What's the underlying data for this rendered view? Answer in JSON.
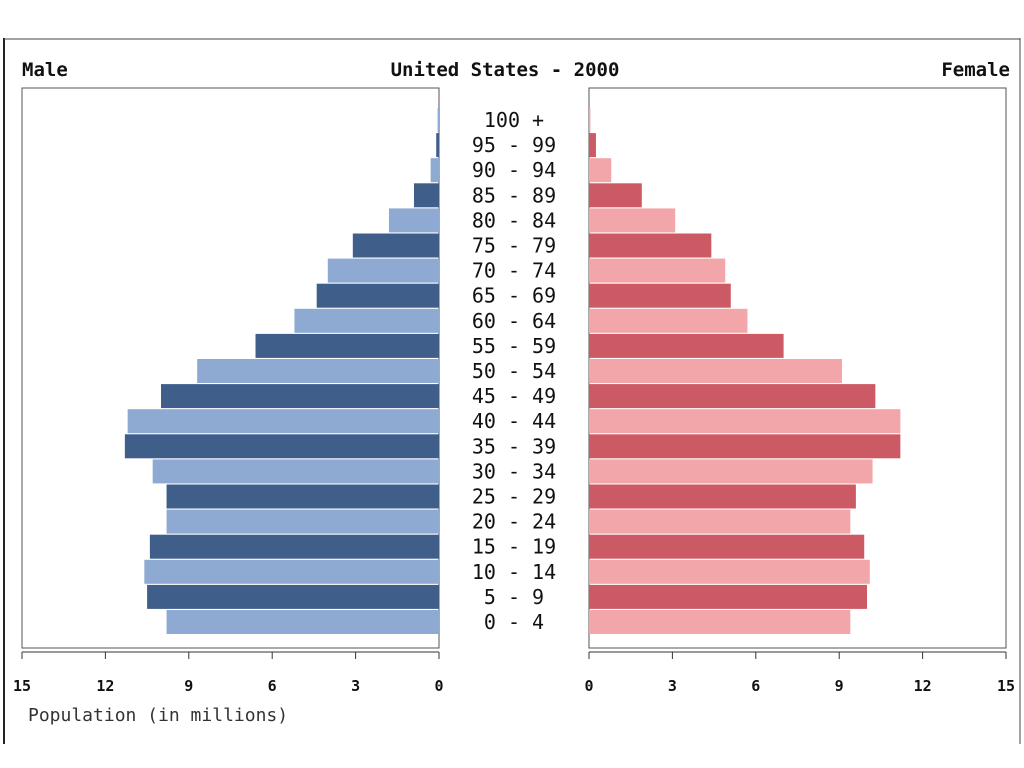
{
  "chart_data": {
    "type": "bar",
    "title": "United States - 2000",
    "left_label": "Male",
    "right_label": "Female",
    "xlabel": "Population (in millions)",
    "xlim": [
      0,
      15
    ],
    "ticks_left": [
      "15",
      "12",
      "9",
      "6",
      "3",
      "0"
    ],
    "ticks_right": [
      "0",
      "3",
      "6",
      "9",
      "12",
      "15"
    ],
    "categories": [
      "0 - 4",
      "5 - 9",
      "10 - 14",
      "15 - 19",
      "20 - 24",
      "25 - 29",
      "30 - 34",
      "35 - 39",
      "40 - 44",
      "45 - 49",
      "50 - 54",
      "55 - 59",
      "60 - 64",
      "65 - 69",
      "70 - 74",
      "75 - 79",
      "80 - 84",
      "85 - 89",
      "90 - 94",
      "95 - 99",
      "100 +"
    ],
    "series": [
      {
        "name": "Male",
        "values": [
          9.8,
          10.5,
          10.6,
          10.4,
          9.8,
          9.8,
          10.3,
          11.3,
          11.2,
          10.0,
          8.7,
          6.6,
          5.2,
          4.4,
          4.0,
          3.1,
          1.8,
          0.9,
          0.3,
          0.1,
          0.05
        ]
      },
      {
        "name": "Female",
        "values": [
          9.4,
          10.0,
          10.1,
          9.9,
          9.4,
          9.6,
          10.2,
          11.2,
          11.2,
          10.3,
          9.1,
          7.0,
          5.7,
          5.1,
          4.9,
          4.4,
          3.1,
          1.9,
          0.8,
          0.25,
          0.05
        ]
      }
    ],
    "colors": {
      "male_dark": "#3f5f8a",
      "male_light": "#8eaad3",
      "female_dark": "#cc5a64",
      "female_light": "#f2a6aa",
      "frame": "#333333"
    }
  }
}
